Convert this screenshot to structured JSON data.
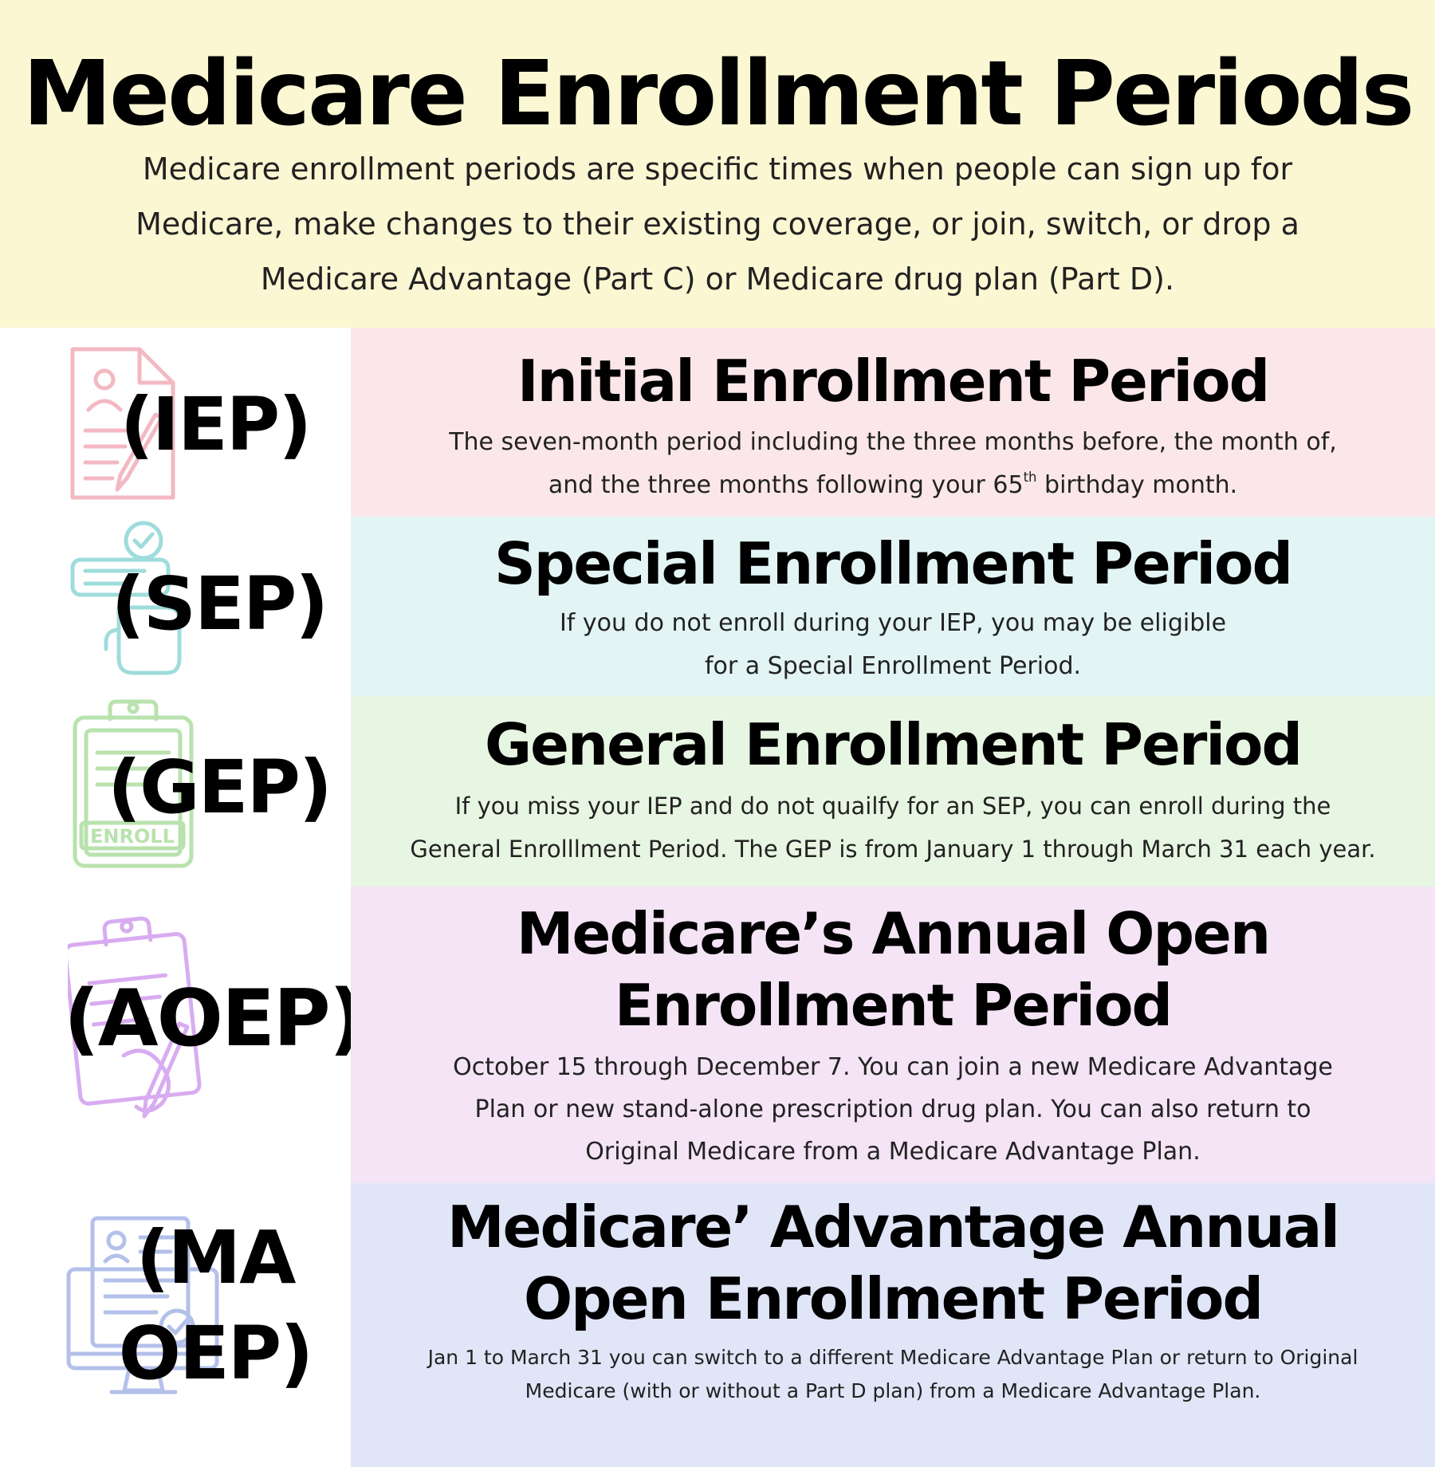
{
  "header": {
    "title": "Medicare Enrollment Periods",
    "intro_lines": [
      "Medicare enrollment periods are specific times when people can sign up for",
      "Medicare, make changes to their existing coverage, or join, switch, or drop a",
      "Medicare Advantage (Part C) or Medicare drug plan (Part D)."
    ]
  },
  "periods": [
    {
      "acronym": "(IEP)",
      "icon": "document-pen-icon",
      "title": "Initial Enrollment Period",
      "desc_line1": "The seven-month period including the three months before, the month of,",
      "desc_line2_pre": "and the three months following your 65",
      "desc_line2_sup": "th",
      "desc_line2_post": " birthday month.",
      "colors": {
        "panel": "#fbe7ea",
        "icon": "#f3b9c3"
      }
    },
    {
      "acronym": "(SEP)",
      "icon": "checklist-hand-icon",
      "title": "Special Enrollment Period",
      "desc_lines": [
        "If you do not enroll during your IEP, you may be eligible",
        "for a Special Enrollment Period."
      ],
      "colors": {
        "panel": "#e3f4f4",
        "icon": "#9fdcdc"
      }
    },
    {
      "acronym": "(GEP)",
      "icon": "clipboard-enroll-icon",
      "icon_text": "ENROLL",
      "title": "General Enrollment Period",
      "desc_lines": [
        "If you miss your IEP and do not quailfy for an SEP,  you can enroll during the",
        "General Enrolllment Period. The GEP is from January 1 through March 31 each year."
      ],
      "colors": {
        "panel": "#e7f6e2",
        "icon": "#b9e2ae"
      }
    },
    {
      "acronym": "(AOEP)",
      "icon": "clipboard-pen-icon",
      "title_lines": [
        "Medicare’s Annual Open",
        "Enrollment Period"
      ],
      "desc_lines": [
        "October 15 through December 7. You can join a new Medicare Advantage",
        "Plan or new stand-alone prescription drug plan. You can also return to",
        "Original Medicare from a Medicare Advantage Plan."
      ],
      "colors": {
        "panel": "#f4e4f6",
        "icon": "#d8acf0"
      }
    },
    {
      "acronym_lines": [
        "(MA",
        "OEP)"
      ],
      "icon": "monitor-profile-icon",
      "title_lines": [
        "Medicare’ Advantage Annual",
        "Open Enrollment Period"
      ],
      "desc_lines": [
        "Jan 1 to March 31 you can switch to a different Medicare Advantage Plan or return to Original",
        "Medicare (with or without a Part D plan) from a Medicare Advantage Plan."
      ],
      "colors": {
        "panel": "#e0e5f8",
        "icon": "#b3c0ea"
      }
    }
  ]
}
